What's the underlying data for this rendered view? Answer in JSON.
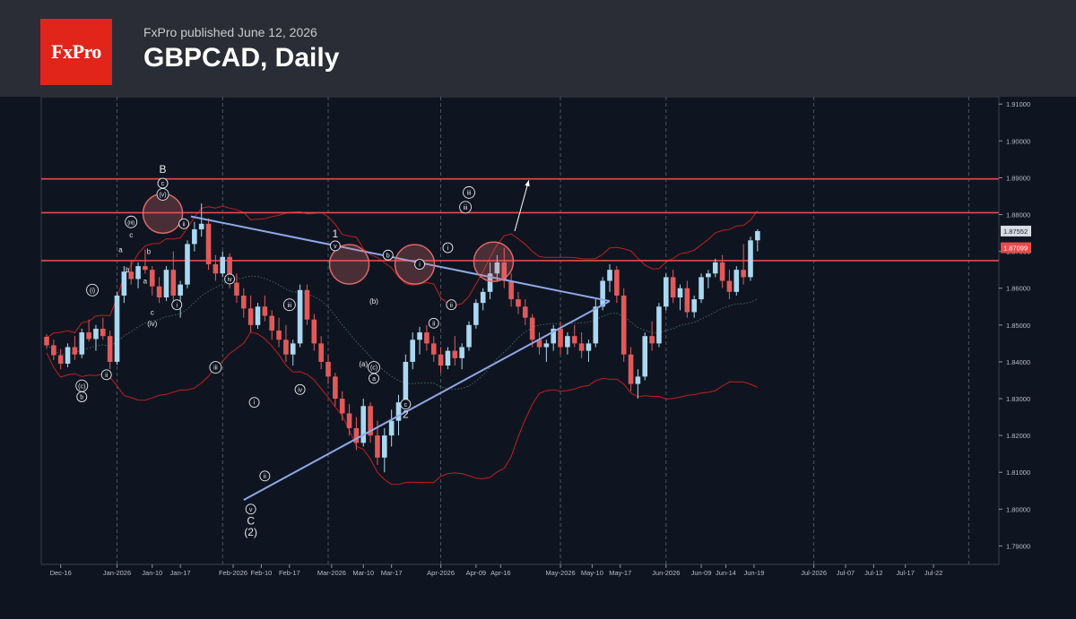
{
  "header": {
    "logo_text": "FxPro",
    "published": "FxPro published June 12, 2026",
    "title": "GBPCAD, Daily"
  },
  "colors": {
    "background": "#0f1520",
    "header_bg": "#2a2d35",
    "logo_red": "#e1251b",
    "bull_candle": "#a9d8f0",
    "bear_candle": "#e05a5a",
    "resistance_line": "#e84a4a",
    "triangle_line": "#8fa8e8",
    "bollinger": "#c02020"
  },
  "chart_data": {
    "type": "candlestick",
    "title": "GBPCAD, Daily",
    "ylim": [
      1.785,
      1.912
    ],
    "y_ticks": [
      1.91,
      1.9,
      1.89,
      1.88,
      1.87,
      1.86,
      1.85,
      1.84,
      1.83,
      1.82,
      1.81,
      1.8,
      1.79
    ],
    "y_tick_labels": [
      "1.91000",
      "1.90000",
      "1.89000",
      "1.88000",
      "1.87000",
      "1.86000",
      "1.85000",
      "1.84000",
      "1.83000",
      "1.82000",
      "1.81000",
      "1.80000",
      "1.79000"
    ],
    "x_labels": [
      "Dec-16",
      "Jan-2026",
      "Jan-10",
      "Jan-17",
      "Feb-2026",
      "Feb-10",
      "Feb-17",
      "Mar-2026",
      "Mar-10",
      "Mar-17",
      "Apr-2026",
      "Apr-09",
      "Apr-16",
      "May-2026",
      "May-10",
      "May-17",
      "Jun-2026",
      "Jun-09",
      "Jun-14",
      "Jun-19",
      "Jul-2026",
      "Jul-07",
      "Jul-12",
      "Jul-17",
      "Jul-22"
    ],
    "price_labels": [
      {
        "text": "1.87552",
        "value": 1.87552
      },
      {
        "text": "1.87099",
        "value": 1.87099
      }
    ],
    "grid": true,
    "horizontal_levels": [
      1.8897,
      1.8805,
      1.8675
    ],
    "triangle": {
      "upper": [
        [
          20.5,
          1.8795
        ],
        [
          80,
          1.8565
        ]
      ],
      "lower": [
        [
          28,
          1.8025
        ],
        [
          80,
          1.8565
        ]
      ]
    },
    "projection_arrow": [
      [
        66.5,
        1.8755
      ],
      [
        68.5,
        1.8893
      ]
    ],
    "circles": [
      {
        "x": 16.5,
        "y": 1.8803
      },
      {
        "x": 43,
        "y": 1.8665
      },
      {
        "x": 52.3,
        "y": 1.8665
      },
      {
        "x": 63.5,
        "y": 1.8672
      }
    ],
    "ohlc": [
      [
        1.8468,
        1.8475,
        1.8435,
        1.8445
      ],
      [
        1.8445,
        1.846,
        1.8405,
        1.8418
      ],
      [
        1.8418,
        1.8435,
        1.838,
        1.8395
      ],
      [
        1.8395,
        1.845,
        1.8385,
        1.844
      ],
      [
        1.844,
        1.847,
        1.8405,
        1.842
      ],
      [
        1.842,
        1.849,
        1.841,
        1.848
      ],
      [
        1.848,
        1.8515,
        1.8455,
        1.8462
      ],
      [
        1.8462,
        1.85,
        1.843,
        1.849
      ],
      [
        1.849,
        1.852,
        1.846,
        1.847
      ],
      [
        1.847,
        1.8485,
        1.838,
        1.84
      ],
      [
        1.84,
        1.859,
        1.8392,
        1.858
      ],
      [
        1.858,
        1.866,
        1.856,
        1.8645
      ],
      [
        1.8645,
        1.8675,
        1.861,
        1.8625
      ],
      [
        1.8625,
        1.867,
        1.86,
        1.866
      ],
      [
        1.866,
        1.8705,
        1.864,
        1.865
      ],
      [
        1.865,
        1.866,
        1.858,
        1.8605
      ],
      [
        1.8605,
        1.863,
        1.856,
        1.8575
      ],
      [
        1.8575,
        1.866,
        1.8565,
        1.865
      ],
      [
        1.865,
        1.87,
        1.856,
        1.858
      ],
      [
        1.858,
        1.862,
        1.852,
        1.861
      ],
      [
        1.861,
        1.873,
        1.86,
        1.872
      ],
      [
        1.872,
        1.878,
        1.87,
        1.876
      ],
      [
        1.876,
        1.883,
        1.874,
        1.8775
      ],
      [
        1.8775,
        1.879,
        1.865,
        1.8665
      ],
      [
        1.8665,
        1.869,
        1.862,
        1.864
      ],
      [
        1.864,
        1.87,
        1.863,
        1.8685
      ],
      [
        1.8685,
        1.8695,
        1.86,
        1.8615
      ],
      [
        1.8615,
        1.864,
        1.856,
        1.858
      ],
      [
        1.858,
        1.86,
        1.852,
        1.8545
      ],
      [
        1.8545,
        1.858,
        1.848,
        1.85
      ],
      [
        1.85,
        1.856,
        1.849,
        1.855
      ],
      [
        1.855,
        1.858,
        1.851,
        1.8525
      ],
      [
        1.8525,
        1.854,
        1.846,
        1.8485
      ],
      [
        1.8485,
        1.852,
        1.844,
        1.846
      ],
      [
        1.846,
        1.85,
        1.84,
        1.842
      ],
      [
        1.842,
        1.846,
        1.839,
        1.845
      ],
      [
        1.845,
        1.861,
        1.844,
        1.8595
      ],
      [
        1.8595,
        1.861,
        1.85,
        1.8515
      ],
      [
        1.8515,
        1.853,
        1.843,
        1.845
      ],
      [
        1.845,
        1.847,
        1.838,
        1.84
      ],
      [
        1.84,
        1.842,
        1.834,
        1.836
      ],
      [
        1.836,
        1.837,
        1.828,
        1.83
      ],
      [
        1.83,
        1.832,
        1.824,
        1.826
      ],
      [
        1.826,
        1.8285,
        1.82,
        1.822
      ],
      [
        1.822,
        1.825,
        1.816,
        1.818
      ],
      [
        1.818,
        1.83,
        1.817,
        1.828
      ],
      [
        1.828,
        1.829,
        1.818,
        1.82
      ],
      [
        1.82,
        1.824,
        1.812,
        1.814
      ],
      [
        1.814,
        1.822,
        1.81,
        1.82
      ],
      [
        1.82,
        1.827,
        1.817,
        1.824
      ],
      [
        1.824,
        1.831,
        1.82,
        1.829
      ],
      [
        1.829,
        1.842,
        1.828,
        1.84
      ],
      [
        1.84,
        1.848,
        1.838,
        1.846
      ],
      [
        1.846,
        1.8495,
        1.842,
        1.848
      ],
      [
        1.848,
        1.85,
        1.843,
        1.845
      ],
      [
        1.845,
        1.847,
        1.84,
        1.842
      ],
      [
        1.842,
        1.844,
        1.837,
        1.839
      ],
      [
        1.839,
        1.844,
        1.838,
        1.843
      ],
      [
        1.843,
        1.847,
        1.839,
        1.841
      ],
      [
        1.841,
        1.845,
        1.838,
        1.844
      ],
      [
        1.844,
        1.851,
        1.843,
        1.85
      ],
      [
        1.85,
        1.857,
        1.849,
        1.856
      ],
      [
        1.856,
        1.86,
        1.854,
        1.859
      ],
      [
        1.859,
        1.867,
        1.857,
        1.864
      ],
      [
        1.864,
        1.869,
        1.862,
        1.867
      ],
      [
        1.867,
        1.871,
        1.86,
        1.862
      ],
      [
        1.862,
        1.864,
        1.855,
        1.857
      ],
      [
        1.857,
        1.859,
        1.853,
        1.855
      ],
      [
        1.855,
        1.857,
        1.85,
        1.852
      ],
      [
        1.852,
        1.853,
        1.844,
        1.846
      ],
      [
        1.846,
        1.848,
        1.842,
        1.844
      ],
      [
        1.844,
        1.846,
        1.84,
        1.845
      ],
      [
        1.845,
        1.85,
        1.843,
        1.849
      ],
      [
        1.849,
        1.851,
        1.842,
        1.844
      ],
      [
        1.844,
        1.848,
        1.842,
        1.847
      ],
      [
        1.847,
        1.85,
        1.844,
        1.845
      ],
      [
        1.845,
        1.848,
        1.841,
        1.843
      ],
      [
        1.843,
        1.846,
        1.84,
        1.845
      ],
      [
        1.845,
        1.857,
        1.844,
        1.855
      ],
      [
        1.855,
        1.863,
        1.854,
        1.862
      ],
      [
        1.862,
        1.8665,
        1.859,
        1.865
      ],
      [
        1.865,
        1.866,
        1.856,
        1.858
      ],
      [
        1.858,
        1.86,
        1.84,
        1.842
      ],
      [
        1.842,
        1.844,
        1.832,
        1.834
      ],
      [
        1.834,
        1.838,
        1.83,
        1.836
      ],
      [
        1.836,
        1.848,
        1.835,
        1.847
      ],
      [
        1.847,
        1.851,
        1.843,
        1.845
      ],
      [
        1.845,
        1.856,
        1.844,
        1.855
      ],
      [
        1.855,
        1.864,
        1.854,
        1.863
      ],
      [
        1.863,
        1.865,
        1.856,
        1.8575
      ],
      [
        1.8575,
        1.861,
        1.854,
        1.86
      ],
      [
        1.86,
        1.862,
        1.852,
        1.8535
      ],
      [
        1.8535,
        1.858,
        1.852,
        1.857
      ],
      [
        1.857,
        1.864,
        1.856,
        1.863
      ],
      [
        1.863,
        1.865,
        1.86,
        1.864
      ],
      [
        1.864,
        1.868,
        1.863,
        1.867
      ],
      [
        1.867,
        1.869,
        1.86,
        1.862
      ],
      [
        1.862,
        1.865,
        1.857,
        1.859
      ],
      [
        1.859,
        1.866,
        1.858,
        1.865
      ],
      [
        1.865,
        1.872,
        1.861,
        1.863
      ],
      [
        1.863,
        1.874,
        1.862,
        1.873
      ],
      [
        1.873,
        1.876,
        1.87,
        1.8755
      ]
    ]
  },
  "wave_labels": [
    {
      "t": "B",
      "x": 16.5,
      "y": 1.892,
      "s": "plain"
    },
    {
      "t": "c",
      "x": 16.5,
      "y": 1.8885,
      "s": "circ"
    },
    {
      "t": "(v)",
      "x": 16.5,
      "y": 1.8855,
      "s": "circ"
    },
    {
      "t": "ii",
      "x": 19.5,
      "y": 1.8775,
      "s": "circ"
    },
    {
      "t": "i",
      "x": 18.5,
      "y": 1.8555,
      "s": "circ"
    },
    {
      "t": "(iii)",
      "x": 12,
      "y": 1.878,
      "s": "circ"
    },
    {
      "t": "c",
      "x": 12,
      "y": 1.8745,
      "s": "plain"
    },
    {
      "t": "a",
      "x": 10.5,
      "y": 1.8705,
      "s": "plain"
    },
    {
      "t": "b",
      "x": 11.5,
      "y": 1.865,
      "s": "plain"
    },
    {
      "t": "b",
      "x": 14.5,
      "y": 1.87,
      "s": "plain"
    },
    {
      "t": "a",
      "x": 14,
      "y": 1.862,
      "s": "plain"
    },
    {
      "t": "c",
      "x": 15,
      "y": 1.8535,
      "s": "plain"
    },
    {
      "t": "(iv)",
      "x": 15,
      "y": 1.8505,
      "s": "plain"
    },
    {
      "t": "(i)",
      "x": 6.5,
      "y": 1.8595,
      "s": "circ"
    },
    {
      "t": "ii",
      "x": 8.5,
      "y": 1.8365,
      "s": "circ"
    },
    {
      "t": "(c)",
      "x": 5,
      "y": 1.8335,
      "s": "circ"
    },
    {
      "t": "b",
      "x": 5,
      "y": 1.8305,
      "s": "circ"
    },
    {
      "t": "iv",
      "x": 26,
      "y": 1.8625,
      "s": "circ"
    },
    {
      "t": "iii",
      "x": 24,
      "y": 1.8385,
      "s": "circ"
    },
    {
      "t": "i",
      "x": 29.5,
      "y": 1.829,
      "s": "circ"
    },
    {
      "t": "ii",
      "x": 31,
      "y": 1.809,
      "s": "circ"
    },
    {
      "t": "v",
      "x": 29,
      "y": 1.8,
      "s": "circ"
    },
    {
      "t": "C",
      "x": 29,
      "y": 1.7965,
      "s": "plain"
    },
    {
      "t": "(2)",
      "x": 29,
      "y": 1.7935,
      "s": "plain"
    },
    {
      "t": "iii",
      "x": 34.5,
      "y": 1.8555,
      "s": "circ"
    },
    {
      "t": "iv",
      "x": 36,
      "y": 1.8325,
      "s": "circ"
    },
    {
      "t": "1",
      "x": 41,
      "y": 1.8745,
      "s": "plain"
    },
    {
      "t": "v",
      "x": 41,
      "y": 1.8715,
      "s": "circ"
    },
    {
      "t": "(a)",
      "x": 45,
      "y": 1.8395,
      "s": "plain"
    },
    {
      "t": "(b)",
      "x": 46.5,
      "y": 1.8565,
      "s": "plain"
    },
    {
      "t": "(c)",
      "x": 46.5,
      "y": 1.8385,
      "s": "circ"
    },
    {
      "t": "a",
      "x": 46.5,
      "y": 1.8355,
      "s": "circ"
    },
    {
      "t": "b",
      "x": 48.5,
      "y": 1.869,
      "s": "circ"
    },
    {
      "t": "c",
      "x": 51,
      "y": 1.8285,
      "s": "circ"
    },
    {
      "t": "2",
      "x": 51,
      "y": 1.8255,
      "s": "plain"
    },
    {
      "t": "i",
      "x": 53,
      "y": 1.8665,
      "s": "circ"
    },
    {
      "t": "ii",
      "x": 55,
      "y": 1.8505,
      "s": "circ"
    },
    {
      "t": "i",
      "x": 57,
      "y": 1.871,
      "s": "circ"
    },
    {
      "t": "ii",
      "x": 57.5,
      "y": 1.8555,
      "s": "circ"
    },
    {
      "t": "iii",
      "x": 59.5,
      "y": 1.882,
      "s": "circ"
    },
    {
      "t": "iii",
      "x": 60,
      "y": 1.886,
      "s": "circ"
    }
  ]
}
